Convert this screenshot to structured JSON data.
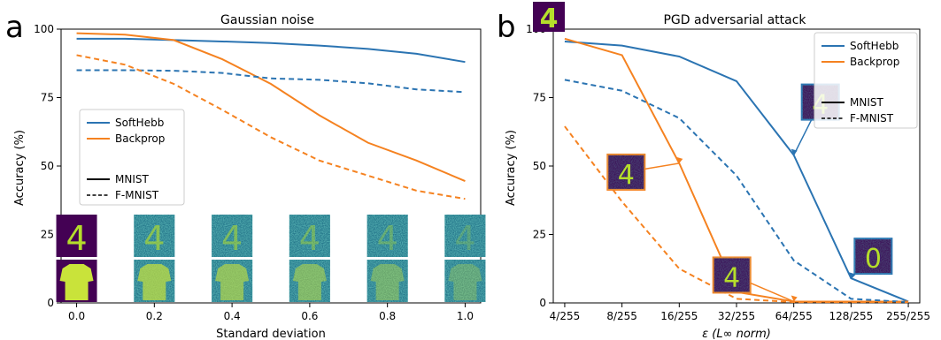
{
  "panel_labels": [
    "a",
    "b"
  ],
  "colors": {
    "softhebb": "#2b74b2",
    "backprop": "#f58220",
    "digit_bg": "#440154",
    "digit_fg": "#b5de2b",
    "noise": "#2a9a8a"
  },
  "chart_data": [
    {
      "type": "line",
      "title": "Gaussian noise",
      "xlabel": "Standard deviation",
      "ylabel": "Accuracy (%)",
      "xlim": [
        -0.04,
        1.04
      ],
      "ylim": [
        0,
        100
      ],
      "xticks": [
        "0.0",
        "0.2",
        "0.4",
        "0.6",
        "0.8",
        "1.0"
      ],
      "yticks": [
        "0",
        "25",
        "50",
        "75",
        "100"
      ],
      "x": [
        0.0,
        0.125,
        0.25,
        0.375,
        0.5,
        0.625,
        0.75,
        0.875,
        1.0
      ],
      "series": [
        {
          "name": "SoftHebb",
          "dataset": "MNIST",
          "values": [
            96.5,
            96.5,
            96.0,
            95.5,
            94.9,
            94.0,
            92.8,
            91.0,
            88.0
          ]
        },
        {
          "name": "Backprop",
          "dataset": "MNIST",
          "values": [
            98.5,
            98.0,
            96.0,
            89.0,
            80.0,
            68.5,
            58.5,
            52.0,
            44.5
          ]
        },
        {
          "name": "SoftHebb",
          "dataset": "F-MNIST",
          "values": [
            85.0,
            85.0,
            84.8,
            84.0,
            82.0,
            81.5,
            80.2,
            78.0,
            77.0
          ]
        },
        {
          "name": "Backprop",
          "dataset": "F-MNIST",
          "values": [
            90.5,
            87.0,
            80.0,
            70.5,
            60.5,
            52.0,
            46.5,
            41.0,
            38.0
          ]
        }
      ],
      "legend": {
        "placement": "center-left",
        "entries": [
          "SoftHebb",
          "Backprop"
        ],
        "style_entries": [
          "MNIST",
          "F-MNIST"
        ]
      },
      "grid": false
    },
    {
      "type": "line",
      "title": "PGD adversarial attack",
      "xlabel": "ε (L∞ norm)",
      "ylabel": "Accuracy (%)",
      "xlim": [
        -0.2,
        6.2
      ],
      "ylim": [
        0,
        100
      ],
      "categories": [
        "4/255",
        "8/255",
        "16/255",
        "32/255",
        "64/255",
        "128/255",
        "255/255"
      ],
      "yticks": [
        "0",
        "25",
        "50",
        "75",
        "100"
      ],
      "series": [
        {
          "name": "SoftHebb",
          "dataset": "MNIST",
          "values": [
            95.5,
            94.0,
            90.0,
            81.0,
            54.0,
            9.0,
            0.5
          ]
        },
        {
          "name": "Backprop",
          "dataset": "MNIST",
          "values": [
            96.5,
            90.5,
            51.0,
            4.0,
            0.5,
            0.5,
            0.5
          ]
        },
        {
          "name": "SoftHebb",
          "dataset": "F-MNIST",
          "values": [
            81.5,
            77.5,
            67.5,
            46.5,
            15.5,
            1.5,
            0.3
          ]
        },
        {
          "name": "Backprop",
          "dataset": "F-MNIST",
          "values": [
            64.5,
            37.0,
            12.5,
            1.5,
            0.3,
            0.3,
            0.3
          ]
        }
      ],
      "legend": {
        "placement": "top-right",
        "entries": [
          "SoftHebb",
          "Backprop"
        ],
        "style_entries": [
          "MNIST",
          "F-MNIST"
        ]
      },
      "annotations": [
        {
          "kind": "adversarial-digit",
          "target_series": "Backprop",
          "target_index": 2,
          "digit": "4"
        },
        {
          "kind": "adversarial-digit",
          "target_series": "Backprop",
          "target_index": 4,
          "digit": "4"
        },
        {
          "kind": "adversarial-digit",
          "target_series": "SoftHebb",
          "target_index": 4,
          "digit": "4"
        },
        {
          "kind": "adversarial-digit",
          "target_series": "SoftHebb",
          "target_index": 5,
          "digit": "0"
        }
      ],
      "grid": false
    }
  ]
}
